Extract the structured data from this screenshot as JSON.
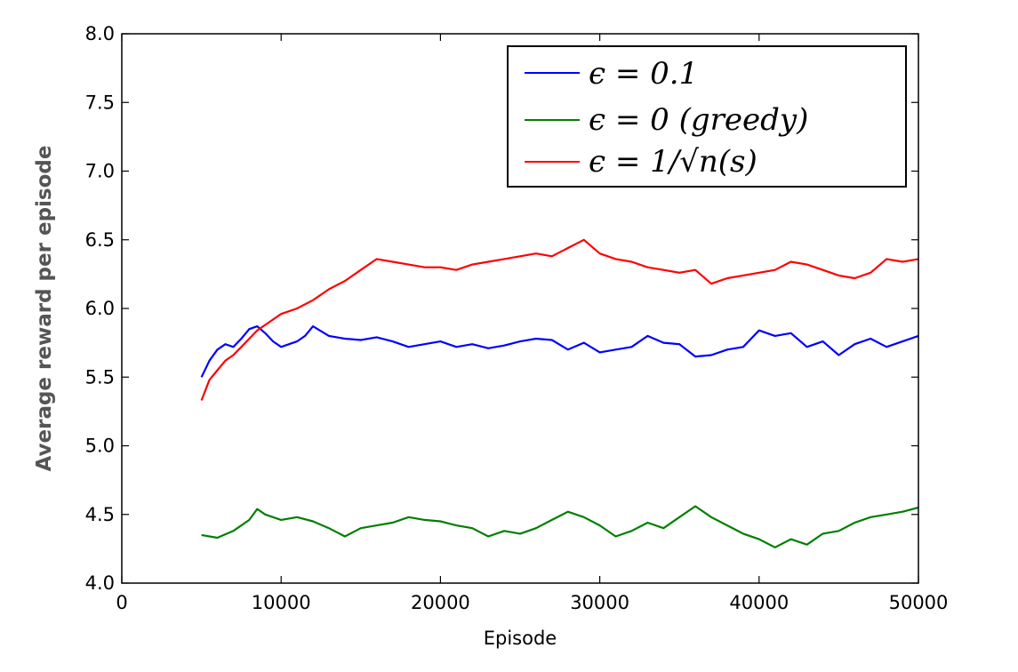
{
  "chart_data": {
    "type": "line",
    "xlabel": "Episode",
    "ylabel": "Average reward per episode",
    "xlim": [
      0,
      50000
    ],
    "ylim": [
      4.0,
      8.0
    ],
    "xticks": [
      "0",
      "10000",
      "20000",
      "30000",
      "40000",
      "50000"
    ],
    "yticks": [
      "4.0",
      "4.5",
      "5.0",
      "5.5",
      "6.0",
      "6.5",
      "7.0",
      "7.5",
      "8.0"
    ],
    "grid": false,
    "legend_position": "top-right",
    "series": [
      {
        "name": "ϵ = 0.1",
        "color": "#0000ff",
        "x": [
          5000,
          5500,
          6000,
          6500,
          7000,
          7500,
          8000,
          8500,
          9000,
          9500,
          10000,
          11000,
          11500,
          12000,
          13000,
          14000,
          15000,
          16000,
          17000,
          18000,
          19000,
          20000,
          21000,
          22000,
          23000,
          24000,
          25000,
          26000,
          27000,
          28000,
          29000,
          30000,
          31000,
          32000,
          33000,
          34000,
          35000,
          36000,
          37000,
          38000,
          39000,
          40000,
          41000,
          42000,
          43000,
          44000,
          45000,
          46000,
          47000,
          48000,
          49000,
          50000
        ],
        "y": [
          5.5,
          5.62,
          5.7,
          5.74,
          5.72,
          5.78,
          5.85,
          5.87,
          5.82,
          5.76,
          5.72,
          5.76,
          5.8,
          5.87,
          5.8,
          5.78,
          5.77,
          5.79,
          5.76,
          5.72,
          5.74,
          5.76,
          5.72,
          5.74,
          5.71,
          5.73,
          5.76,
          5.78,
          5.77,
          5.7,
          5.75,
          5.68,
          5.7,
          5.72,
          5.8,
          5.75,
          5.74,
          5.65,
          5.66,
          5.7,
          5.72,
          5.84,
          5.8,
          5.82,
          5.72,
          5.76,
          5.66,
          5.74,
          5.78,
          5.72,
          5.76,
          5.8
        ]
      },
      {
        "name": "ϵ = 0 (greedy)",
        "color": "#007f00",
        "x": [
          5000,
          6000,
          7000,
          8000,
          8500,
          9000,
          10000,
          11000,
          12000,
          13000,
          14000,
          15000,
          16000,
          17000,
          18000,
          19000,
          20000,
          21000,
          22000,
          23000,
          24000,
          25000,
          26000,
          27000,
          28000,
          29000,
          30000,
          31000,
          32000,
          33000,
          34000,
          35000,
          36000,
          37000,
          38000,
          39000,
          40000,
          41000,
          42000,
          43000,
          44000,
          45000,
          46000,
          47000,
          48000,
          49000,
          50000
        ],
        "y": [
          4.35,
          4.33,
          4.38,
          4.46,
          4.54,
          4.5,
          4.46,
          4.48,
          4.45,
          4.4,
          4.34,
          4.4,
          4.42,
          4.44,
          4.48,
          4.46,
          4.45,
          4.42,
          4.4,
          4.34,
          4.38,
          4.36,
          4.4,
          4.46,
          4.52,
          4.48,
          4.42,
          4.34,
          4.38,
          4.44,
          4.4,
          4.48,
          4.56,
          4.48,
          4.42,
          4.36,
          4.32,
          4.26,
          4.32,
          4.28,
          4.36,
          4.38,
          4.44,
          4.48,
          4.5,
          4.52,
          4.55
        ]
      },
      {
        "name": "ϵ = 1/√n(s)",
        "color": "#ff0000",
        "x": [
          5000,
          5500,
          6000,
          6500,
          7000,
          7500,
          8000,
          8500,
          9000,
          9500,
          10000,
          11000,
          12000,
          13000,
          14000,
          15000,
          16000,
          17000,
          18000,
          19000,
          20000,
          21000,
          22000,
          23000,
          24000,
          25000,
          26000,
          27000,
          28000,
          29000,
          30000,
          31000,
          32000,
          33000,
          34000,
          35000,
          36000,
          37000,
          38000,
          39000,
          40000,
          41000,
          42000,
          43000,
          44000,
          45000,
          46000,
          47000,
          48000,
          49000,
          50000
        ],
        "y": [
          5.33,
          5.48,
          5.55,
          5.62,
          5.66,
          5.72,
          5.78,
          5.84,
          5.88,
          5.92,
          5.96,
          6.0,
          6.06,
          6.14,
          6.2,
          6.28,
          6.36,
          6.34,
          6.32,
          6.3,
          6.3,
          6.28,
          6.32,
          6.34,
          6.36,
          6.38,
          6.4,
          6.38,
          6.44,
          6.5,
          6.4,
          6.36,
          6.34,
          6.3,
          6.28,
          6.26,
          6.28,
          6.18,
          6.22,
          6.24,
          6.26,
          6.28,
          6.34,
          6.32,
          6.28,
          6.24,
          6.22,
          6.26,
          6.36,
          6.34,
          6.36
        ]
      }
    ]
  }
}
